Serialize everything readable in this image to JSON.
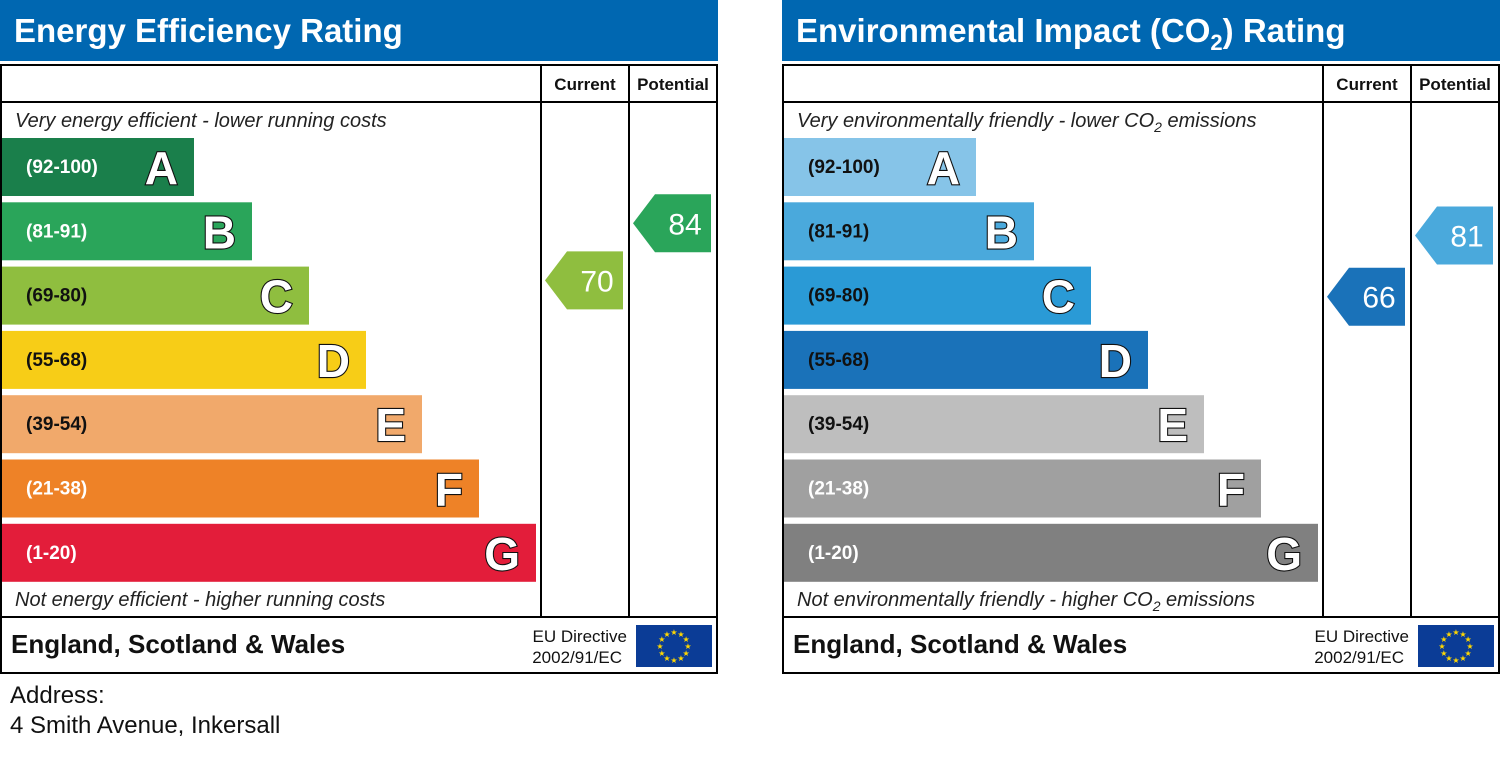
{
  "chart_data": [
    {
      "type": "bar",
      "title": "Energy Efficiency Rating",
      "column_headers": {
        "current": "Current",
        "potential": "Potential"
      },
      "top_caption": "Very energy efficient - lower running costs",
      "bottom_caption": "Not energy efficient - higher running costs",
      "footer_region": "England, Scotland & Wales",
      "eu_directive": [
        "EU Directive",
        "2002/91/EC"
      ],
      "bands": [
        {
          "range": "(92-100)",
          "letter": "A",
          "color": "#1a7f4b"
        },
        {
          "range": "(81-91)",
          "letter": "B",
          "color": "#2aa55a"
        },
        {
          "range": "(69-80)",
          "letter": "C",
          "color": "#8fbe3f"
        },
        {
          "range": "(55-68)",
          "letter": "D",
          "color": "#f7cd17"
        },
        {
          "range": "(39-54)",
          "letter": "E",
          "color": "#f1a96b"
        },
        {
          "range": "(21-38)",
          "letter": "F",
          "color": "#ee8227"
        },
        {
          "range": "(1-20)",
          "letter": "G",
          "color": "#e31d3a"
        }
      ],
      "current": {
        "value": 70,
        "color": "#8fbe3f"
      },
      "potential": {
        "value": 84,
        "color": "#2aa55a"
      }
    },
    {
      "type": "bar",
      "title": "Environmental Impact (CO2) Rating",
      "title_parts": [
        "Environmental Impact (CO",
        "2",
        ") Rating"
      ],
      "column_headers": {
        "current": "Current",
        "potential": "Potential"
      },
      "top_caption": "Very environmentally friendly - lower CO2 emissions",
      "top_caption_parts": [
        "Very environmentally friendly - lower CO",
        "2",
        " emissions"
      ],
      "bottom_caption": "Not environmentally friendly - higher CO2 emissions",
      "bottom_caption_parts": [
        "Not environmentally friendly - higher CO",
        "2",
        " emissions"
      ],
      "footer_region": "England, Scotland & Wales",
      "eu_directive": [
        "EU Directive",
        "2002/91/EC"
      ],
      "bands": [
        {
          "range": "(92-100)",
          "letter": "A",
          "color": "#86c4e8"
        },
        {
          "range": "(81-91)",
          "letter": "B",
          "color": "#4aa9dc"
        },
        {
          "range": "(69-80)",
          "letter": "C",
          "color": "#2a9ad6"
        },
        {
          "range": "(55-68)",
          "letter": "D",
          "color": "#1a72b9"
        },
        {
          "range": "(39-54)",
          "letter": "E",
          "color": "#bebebe"
        },
        {
          "range": "(21-38)",
          "letter": "F",
          "color": "#a0a0a0"
        },
        {
          "range": "(1-20)",
          "letter": "G",
          "color": "#808080"
        }
      ],
      "current": {
        "value": 66,
        "color": "#1a72b9"
      },
      "potential": {
        "value": 81,
        "color": "#4aa9dc"
      }
    }
  ],
  "address": {
    "label": "Address:",
    "value": "4 Smith Avenue, Inkersall"
  },
  "header_color": "#0067b1"
}
